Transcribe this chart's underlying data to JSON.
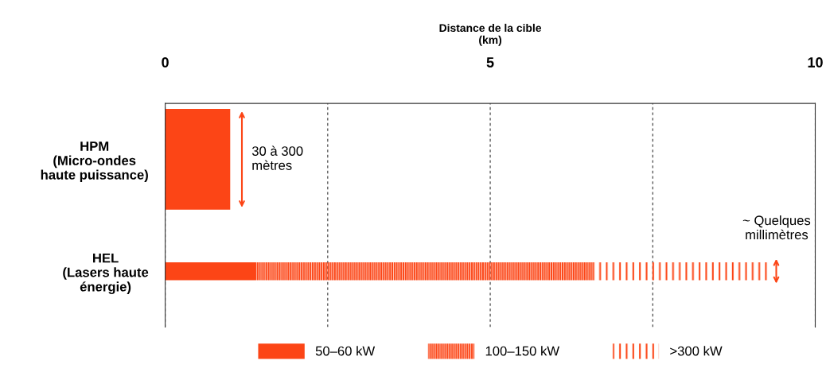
{
  "chart_data": {
    "type": "bar",
    "orientation": "horizontal",
    "stacked": true,
    "xlabel": "Distance de la cible\n(km)",
    "categories": [
      "HPM\n(Micro-ondes\nhaute puissance)",
      "HEL\n(Lasers haute\nénergie)"
    ],
    "series": [
      {
        "name": "50–60 kW",
        "color": "#fc4516",
        "line_style": "solid",
        "values": [
          1.0,
          1.4
        ]
      },
      {
        "name": "100–150 kW",
        "color": "#fc4516",
        "line_style": "dashed",
        "values": [
          null,
          5.2
        ]
      },
      {
        "name": ">300 kW",
        "color": "#fc4516",
        "line_style": "dotted",
        "values": [
          null,
          2.7
        ]
      }
    ],
    "xlim": [
      0,
      10
    ],
    "xticks": [
      0,
      {
        "value": 2.5,
        "label": null
      },
      5,
      {
        "value": 7.5,
        "label": null
      },
      10
    ],
    "grid": "x",
    "legend": "bottom",
    "annotations": [
      "30 à 300\nmètres",
      "~ Quelques\nmillimètres"
    ]
  }
}
